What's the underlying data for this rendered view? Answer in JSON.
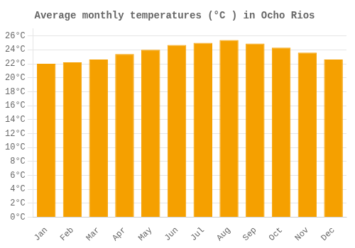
{
  "chart_data": {
    "type": "bar",
    "title": "Average monthly temperatures (°C ) in Ocho Rios",
    "categories": [
      "Jan",
      "Feb",
      "Mar",
      "Apr",
      "May",
      "Jun",
      "Jul",
      "Aug",
      "Sep",
      "Oct",
      "Nov",
      "Dec"
    ],
    "values": [
      22.0,
      22.2,
      22.6,
      23.4,
      24.0,
      24.7,
      25.0,
      25.4,
      24.9,
      24.3,
      23.6,
      22.6
    ],
    "color": "#F5A000",
    "ylim": [
      0,
      27
    ],
    "yticks": [
      {
        "value": 0,
        "label": "0°C"
      },
      {
        "value": 2,
        "label": "2°C"
      },
      {
        "value": 4,
        "label": "4°C"
      },
      {
        "value": 6,
        "label": "6°C"
      },
      {
        "value": 8,
        "label": "8°C"
      },
      {
        "value": 10,
        "label": "10°C"
      },
      {
        "value": 12,
        "label": "12°C"
      },
      {
        "value": 14,
        "label": "14°C"
      },
      {
        "value": 16,
        "label": "16°C"
      },
      {
        "value": 18,
        "label": "18°C"
      },
      {
        "value": 20,
        "label": "20°C"
      },
      {
        "value": 22,
        "label": "22°C"
      },
      {
        "value": 24,
        "label": "24°C"
      },
      {
        "value": 26,
        "label": "26°C"
      }
    ],
    "grid": true
  }
}
